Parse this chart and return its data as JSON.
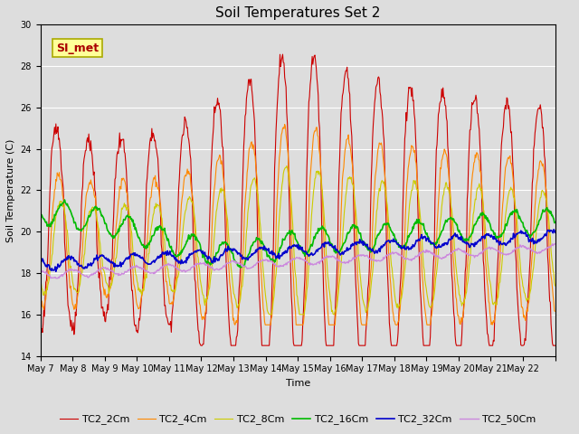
{
  "title": "Soil Temperatures Set 2",
  "xlabel": "Time",
  "ylabel": "Soil Temperature (C)",
  "ylim": [
    14,
    30
  ],
  "yticks": [
    14,
    16,
    18,
    20,
    22,
    24,
    26,
    28,
    30
  ],
  "x_labels": [
    "May 7",
    "May 8",
    "May 9",
    "May 10",
    "May 11",
    "May 12",
    "May 13",
    "May 14",
    "May 15",
    "May 16",
    "May 17",
    "May 18",
    "May 19",
    "May 20",
    "May 21",
    "May 22"
  ],
  "colors": {
    "TC2_2Cm": "#cc0000",
    "TC2_4Cm": "#ff8800",
    "TC2_8Cm": "#cccc00",
    "TC2_16Cm": "#00bb00",
    "TC2_32Cm": "#0000cc",
    "TC2_50Cm": "#cc88dd"
  },
  "annotation_text": "SI_met",
  "annotation_color": "#aa0000",
  "annotation_bg": "#ffff99",
  "annotation_edge": "#aaaa00",
  "fig_bg": "#dddddd",
  "plot_bg": "#dddddd",
  "title_fontsize": 11,
  "axis_fontsize": 8,
  "tick_fontsize": 7,
  "legend_fontsize": 8
}
